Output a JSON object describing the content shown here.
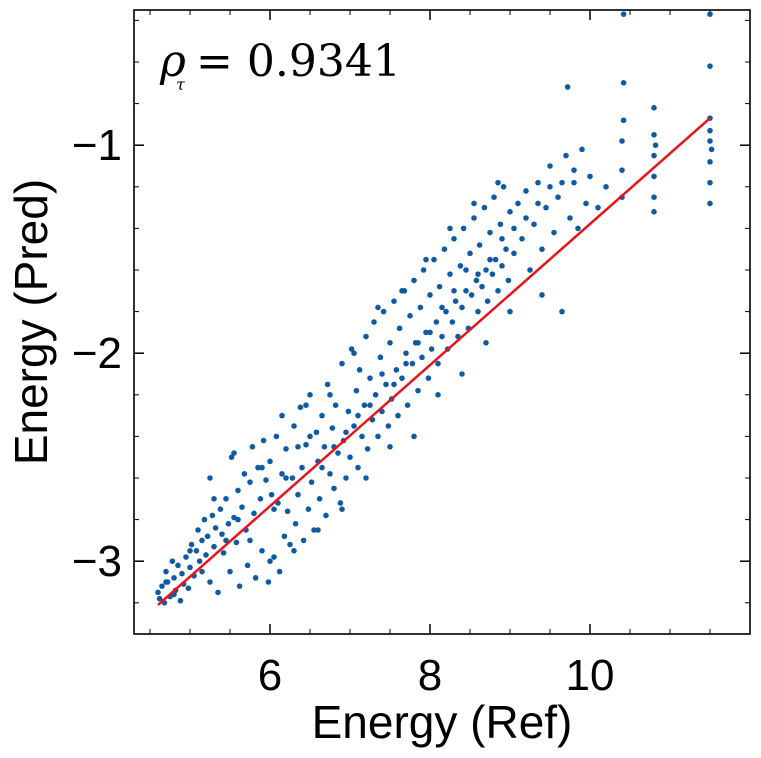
{
  "chart_data": {
    "type": "scatter",
    "title": "",
    "xlabel": "Energy (Ref)",
    "ylabel": "Energy (Pred)",
    "xlim": [
      4.3,
      12.0
    ],
    "ylim": [
      -3.35,
      -0.35
    ],
    "xticks": [
      6,
      8,
      10
    ],
    "xtick_labels": [
      "6",
      "8",
      "10"
    ],
    "yticks": [
      -3,
      -2,
      -1
    ],
    "ytick_labels": [
      "−3",
      "−2",
      "−1"
    ],
    "x_minor_step": 0.5,
    "y_minor_step": 0.2,
    "annotation": {
      "symbol": "ρ",
      "subscript": "τ",
      "text": "= 0.9341"
    },
    "colors": {
      "points": "#0f5aa3",
      "fit_line": "#e8141b",
      "axes": "#000000"
    },
    "fit_line": {
      "x": [
        4.6,
        11.5
      ],
      "y": [
        -3.21,
        -0.87
      ]
    },
    "points": [
      [
        4.6,
        -3.15
      ],
      [
        4.62,
        -3.18
      ],
      [
        4.65,
        -3.12
      ],
      [
        4.68,
        -3.2
      ],
      [
        4.7,
        -3.05
      ],
      [
        4.72,
        -3.1
      ],
      [
        4.75,
        -3.17
      ],
      [
        4.78,
        -3.0
      ],
      [
        4.8,
        -3.08
      ],
      [
        4.82,
        -3.14
      ],
      [
        4.85,
        -3.02
      ],
      [
        4.88,
        -3.19
      ],
      [
        4.9,
        -3.06
      ],
      [
        4.92,
        -3.11
      ],
      [
        4.95,
        -2.98
      ],
      [
        4.98,
        -3.13
      ],
      [
        5.0,
        -3.03
      ],
      [
        5.02,
        -2.92
      ],
      [
        5.05,
        -3.07
      ],
      [
        5.08,
        -2.95
      ],
      [
        5.1,
        -2.85
      ],
      [
        5.12,
        -3.0
      ],
      [
        5.15,
        -2.9
      ],
      [
        5.18,
        -2.8
      ],
      [
        5.2,
        -2.97
      ],
      [
        5.22,
        -2.88
      ],
      [
        5.25,
        -3.1
      ],
      [
        5.28,
        -2.78
      ],
      [
        5.3,
        -2.93
      ],
      [
        5.32,
        -2.84
      ],
      [
        5.35,
        -3.15
      ],
      [
        5.38,
        -2.75
      ],
      [
        5.4,
        -2.87
      ],
      [
        5.42,
        -2.96
      ],
      [
        5.45,
        -2.7
      ],
      [
        5.48,
        -2.82
      ],
      [
        5.5,
        -3.05
      ],
      [
        5.52,
        -2.5
      ],
      [
        5.55,
        -2.79
      ],
      [
        5.58,
        -2.91
      ],
      [
        5.6,
        -2.66
      ],
      [
        5.62,
        -3.12
      ],
      [
        5.65,
        -2.74
      ],
      [
        5.68,
        -2.58
      ],
      [
        5.7,
        -2.85
      ],
      [
        5.72,
        -3.02
      ],
      [
        5.75,
        -2.62
      ],
      [
        5.78,
        -2.45
      ],
      [
        5.8,
        -2.77
      ],
      [
        5.82,
        -3.08
      ],
      [
        5.85,
        -2.55
      ],
      [
        5.88,
        -2.7
      ],
      [
        5.9,
        -2.95
      ],
      [
        5.92,
        -2.42
      ],
      [
        5.95,
        -2.61
      ],
      [
        5.98,
        -3.1
      ],
      [
        6.0,
        -2.52
      ],
      [
        6.02,
        -2.68
      ],
      [
        6.05,
        -2.98
      ],
      [
        6.08,
        -2.4
      ],
      [
        6.1,
        -2.72
      ],
      [
        6.12,
        -3.05
      ],
      [
        6.15,
        -2.58
      ],
      [
        6.18,
        -2.88
      ],
      [
        6.2,
        -2.46
      ],
      [
        6.22,
        -2.76
      ],
      [
        6.25,
        -2.92
      ],
      [
        6.28,
        -2.6
      ],
      [
        6.3,
        -2.35
      ],
      [
        6.32,
        -2.82
      ],
      [
        6.35,
        -2.68
      ],
      [
        6.38,
        -2.26
      ],
      [
        6.4,
        -2.55
      ],
      [
        6.42,
        -2.9
      ],
      [
        6.45,
        -2.44
      ],
      [
        6.48,
        -2.75
      ],
      [
        6.5,
        -2.2
      ],
      [
        6.52,
        -2.62
      ],
      [
        6.55,
        -2.85
      ],
      [
        6.58,
        -2.38
      ],
      [
        6.6,
        -2.52
      ],
      [
        6.62,
        -2.7
      ],
      [
        6.65,
        -2.3
      ],
      [
        6.68,
        -2.45
      ],
      [
        6.7,
        -2.78
      ],
      [
        6.72,
        -2.15
      ],
      [
        6.75,
        -2.58
      ],
      [
        6.78,
        -2.36
      ],
      [
        6.8,
        -2.65
      ],
      [
        6.82,
        -2.25
      ],
      [
        6.85,
        -2.48
      ],
      [
        6.88,
        -2.72
      ],
      [
        6.9,
        -2.05
      ],
      [
        6.92,
        -2.42
      ],
      [
        6.95,
        -2.6
      ],
      [
        6.98,
        -2.28
      ],
      [
        7.0,
        -2.5
      ],
      [
        7.02,
        -1.98
      ],
      [
        7.05,
        -2.35
      ],
      [
        7.08,
        -2.18
      ],
      [
        7.1,
        -2.55
      ],
      [
        7.12,
        -2.08
      ],
      [
        7.15,
        -2.4
      ],
      [
        7.18,
        -2.25
      ],
      [
        7.2,
        -1.92
      ],
      [
        7.22,
        -2.46
      ],
      [
        7.25,
        -2.12
      ],
      [
        7.28,
        -2.32
      ],
      [
        7.3,
        -1.85
      ],
      [
        7.32,
        -2.2
      ],
      [
        7.35,
        -2.4
      ],
      [
        7.38,
        -2.02
      ],
      [
        7.4,
        -2.28
      ],
      [
        7.42,
        -1.8
      ],
      [
        7.45,
        -2.15
      ],
      [
        7.48,
        -2.35
      ],
      [
        7.5,
        -1.95
      ],
      [
        7.52,
        -2.22
      ],
      [
        7.55,
        -1.75
      ],
      [
        7.58,
        -2.08
      ],
      [
        7.6,
        -2.3
      ],
      [
        7.62,
        -1.88
      ],
      [
        7.65,
        -2.12
      ],
      [
        7.68,
        -1.7
      ],
      [
        7.7,
        -2.0
      ],
      [
        7.72,
        -2.25
      ],
      [
        7.75,
        -1.82
      ],
      [
        7.78,
        -2.05
      ],
      [
        7.8,
        -1.65
      ],
      [
        7.82,
        -1.95
      ],
      [
        7.85,
        -2.18
      ],
      [
        7.88,
        -1.78
      ],
      [
        7.9,
        -2.02
      ],
      [
        7.92,
        -1.6
      ],
      [
        7.95,
        -1.9
      ],
      [
        7.98,
        -2.12
      ],
      [
        8.0,
        -1.72
      ],
      [
        8.02,
        -1.98
      ],
      [
        8.05,
        -1.55
      ],
      [
        8.08,
        -1.85
      ],
      [
        8.1,
        -2.05
      ],
      [
        8.12,
        -1.68
      ],
      [
        8.15,
        -1.92
      ],
      [
        8.18,
        -1.5
      ],
      [
        8.2,
        -1.8
      ],
      [
        8.22,
        -1.98
      ],
      [
        8.25,
        -1.62
      ],
      [
        8.28,
        -1.85
      ],
      [
        8.3,
        -1.45
      ],
      [
        8.32,
        -1.75
      ],
      [
        8.35,
        -1.92
      ],
      [
        8.38,
        -1.58
      ],
      [
        8.4,
        -1.78
      ],
      [
        8.42,
        -1.4
      ],
      [
        8.45,
        -1.7
      ],
      [
        8.48,
        -1.88
      ],
      [
        8.5,
        -1.52
      ],
      [
        8.52,
        -1.72
      ],
      [
        8.55,
        -1.35
      ],
      [
        8.58,
        -1.65
      ],
      [
        8.6,
        -1.8
      ],
      [
        8.62,
        -1.48
      ],
      [
        8.65,
        -1.68
      ],
      [
        8.68,
        -1.3
      ],
      [
        8.7,
        -1.6
      ],
      [
        8.72,
        -1.75
      ],
      [
        8.75,
        -1.42
      ],
      [
        8.78,
        -1.62
      ],
      [
        8.8,
        -1.25
      ],
      [
        8.82,
        -1.55
      ],
      [
        8.85,
        -1.7
      ],
      [
        8.88,
        -1.38
      ],
      [
        8.9,
        -1.58
      ],
      [
        8.92,
        -1.2
      ],
      [
        8.95,
        -1.5
      ],
      [
        8.98,
        -1.65
      ],
      [
        9.0,
        -1.32
      ],
      [
        9.05,
        -1.52
      ],
      [
        9.1,
        -1.28
      ],
      [
        9.15,
        -1.45
      ],
      [
        9.2,
        -1.22
      ],
      [
        9.25,
        -1.6
      ],
      [
        9.3,
        -1.38
      ],
      [
        9.35,
        -1.18
      ],
      [
        9.4,
        -1.5
      ],
      [
        9.45,
        -1.3
      ],
      [
        9.5,
        -1.1
      ],
      [
        9.55,
        -1.42
      ],
      [
        9.6,
        -1.25
      ],
      [
        9.65,
        -1.8
      ],
      [
        9.7,
        -1.05
      ],
      [
        9.72,
        -0.72
      ],
      [
        9.75,
        -1.35
      ],
      [
        9.8,
        -1.18
      ],
      [
        9.85,
        -1.4
      ],
      [
        9.9,
        -1.02
      ],
      [
        9.95,
        -1.28
      ],
      [
        10.0,
        -1.15
      ],
      [
        10.1,
        -1.3
      ],
      [
        10.2,
        -1.2
      ],
      [
        10.4,
        -1.25
      ],
      [
        10.4,
        -0.98
      ],
      [
        10.4,
        -1.12
      ],
      [
        10.42,
        -0.7
      ],
      [
        10.42,
        -0.88
      ],
      [
        10.42,
        -0.37
      ],
      [
        10.8,
        -0.95
      ],
      [
        10.8,
        -1.05
      ],
      [
        10.8,
        -1.15
      ],
      [
        10.8,
        -1.25
      ],
      [
        10.8,
        -1.32
      ],
      [
        10.8,
        -0.82
      ],
      [
        10.82,
        -1.0
      ],
      [
        11.5,
        -0.37
      ],
      [
        11.5,
        -0.62
      ],
      [
        11.5,
        -0.87
      ],
      [
        11.5,
        -0.98
      ],
      [
        11.5,
        -1.08
      ],
      [
        11.5,
        -1.18
      ],
      [
        11.5,
        -1.28
      ],
      [
        11.5,
        -0.93
      ],
      [
        11.52,
        -1.02
      ],
      [
        4.7,
        -3.1
      ],
      [
        5.0,
        -2.95
      ],
      [
        5.3,
        -2.7
      ],
      [
        5.6,
        -2.8
      ],
      [
        5.9,
        -2.55
      ],
      [
        6.2,
        -2.6
      ],
      [
        6.5,
        -2.4
      ],
      [
        6.8,
        -2.45
      ],
      [
        7.1,
        -2.3
      ],
      [
        7.4,
        -2.1
      ],
      [
        7.7,
        -2.05
      ],
      [
        8.0,
        -1.9
      ],
      [
        8.3,
        -1.7
      ],
      [
        8.6,
        -1.62
      ],
      [
        8.9,
        -1.45
      ],
      [
        9.2,
        -1.35
      ],
      [
        9.5,
        -1.2
      ],
      [
        9.8,
        -1.12
      ],
      [
        4.8,
        -3.16
      ],
      [
        5.15,
        -3.05
      ],
      [
        5.45,
        -2.9
      ],
      [
        5.75,
        -2.9
      ],
      [
        6.05,
        -2.75
      ],
      [
        6.35,
        -2.45
      ],
      [
        6.65,
        -2.55
      ],
      [
        6.95,
        -2.38
      ],
      [
        7.25,
        -2.25
      ],
      [
        7.55,
        -2.15
      ],
      [
        7.85,
        -1.95
      ],
      [
        8.15,
        -1.78
      ],
      [
        8.45,
        -1.6
      ],
      [
        8.75,
        -1.55
      ],
      [
        9.05,
        -1.4
      ],
      [
        9.35,
        -1.28
      ],
      [
        9.65,
        -1.18
      ],
      [
        5.25,
        -2.6
      ],
      [
        5.55,
        -2.48
      ],
      [
        6.15,
        -2.3
      ],
      [
        6.45,
        -2.25
      ],
      [
        6.75,
        -2.2
      ],
      [
        7.05,
        -2.0
      ],
      [
        7.35,
        -1.78
      ],
      [
        7.65,
        -1.7
      ],
      [
        7.95,
        -1.55
      ],
      [
        8.25,
        -1.4
      ],
      [
        8.55,
        -1.28
      ],
      [
        8.85,
        -1.18
      ],
      [
        6.0,
        -3.0
      ],
      [
        6.3,
        -2.95
      ],
      [
        6.6,
        -2.85
      ],
      [
        6.9,
        -2.75
      ],
      [
        7.2,
        -2.6
      ],
      [
        7.5,
        -2.45
      ],
      [
        7.8,
        -2.4
      ],
      [
        8.1,
        -2.2
      ],
      [
        8.4,
        -2.1
      ],
      [
        8.7,
        -1.95
      ],
      [
        9.0,
        -1.8
      ],
      [
        9.4,
        -1.72
      ]
    ]
  }
}
